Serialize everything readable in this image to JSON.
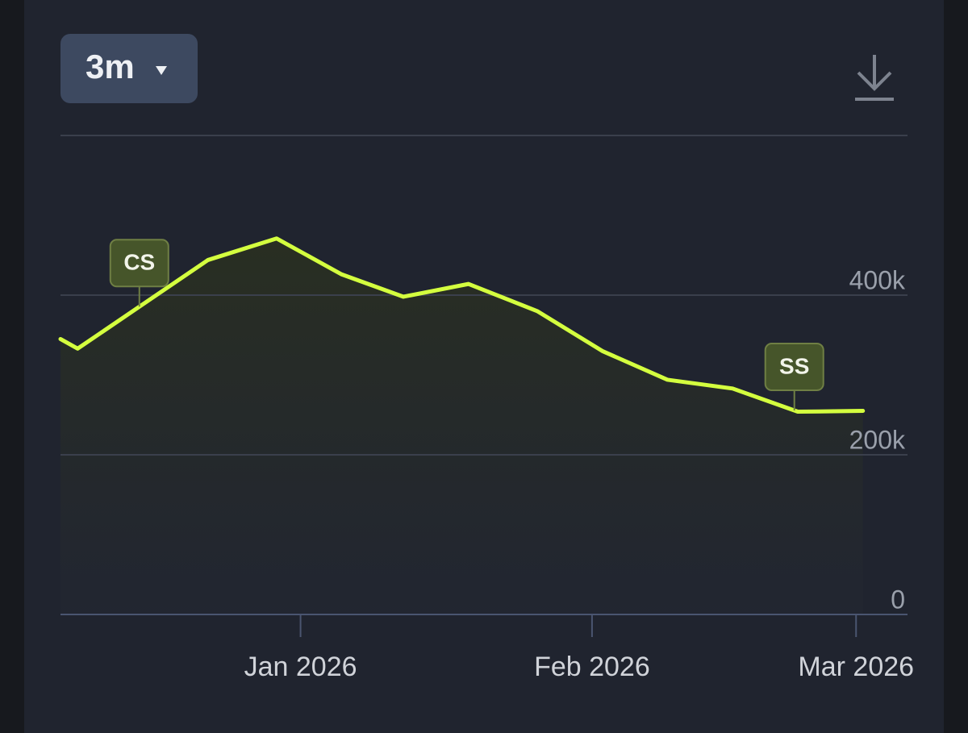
{
  "chart_data": {
    "type": "line",
    "range_button": "3m",
    "x": [
      2025.93,
      2025.935,
      2025.973,
      2025.993,
      2026.012,
      2026.03,
      2026.049,
      2026.069,
      2026.088,
      2026.107,
      2026.126,
      2026.145,
      2026.164
    ],
    "values": [
      345000,
      333000,
      444000,
      471000,
      426000,
      398000,
      414000,
      380000,
      330000,
      294000,
      283000,
      254000,
      255000
    ],
    "color": "#d4ff3f",
    "xlim": [
      2025.93,
      2026.177
    ],
    "xticks": [
      {
        "value": 2026.0,
        "label": "Jan 2026"
      },
      {
        "value": 2026.085,
        "label": "Feb 2026"
      },
      {
        "value": 2026.162,
        "label": "Mar 2026"
      }
    ],
    "ylim": [
      0,
      600000
    ],
    "yticks": [
      0,
      {
        "value": 200000,
        "label": "200k"
      },
      {
        "value": 400000,
        "label": "400k"
      }
    ],
    "grid": true,
    "annotations": [
      {
        "label": "CS",
        "x": 2025.953
      },
      {
        "label": "SS",
        "x": 2026.144
      }
    ]
  }
}
